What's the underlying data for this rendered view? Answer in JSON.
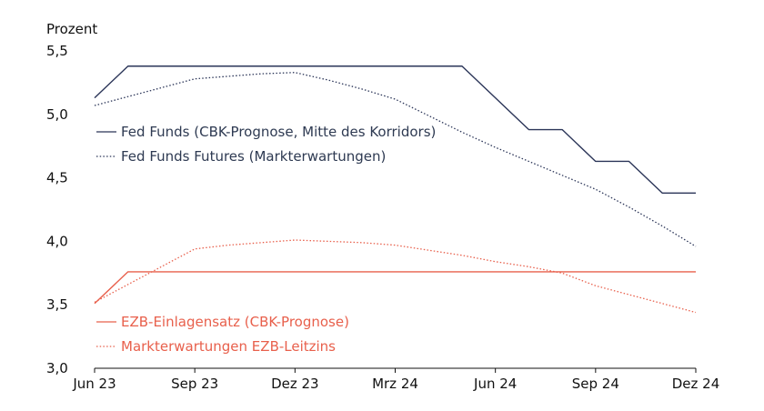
{
  "chart_data": {
    "type": "line",
    "ylabel": "Prozent",
    "ylim": [
      3.0,
      5.5
    ],
    "y_ticks": [
      "3,0",
      "3,5",
      "4,0",
      "4,5",
      "5,0",
      "5,5"
    ],
    "x_axis": {
      "start": "2023-06",
      "end": "2024-12",
      "tick_labels": [
        "Jun 23",
        "Sep 23",
        "Dez 23",
        "Mrz 24",
        "Jun 24",
        "Sep 24",
        "Dez 24"
      ],
      "tick_positions": [
        "2023-06",
        "2023-09",
        "2023-12",
        "2024-03",
        "2024-06",
        "2024-09",
        "2024-12"
      ]
    },
    "grid": false,
    "legend_placement": "inside-left",
    "series": [
      {
        "name": "Fed Funds (CBK-Prognose, Mitte des Korridors)",
        "color": "#2b3558",
        "style": "solid",
        "points": [
          {
            "x": "2023-06",
            "y": 5.13
          },
          {
            "x": "2023-07",
            "y": 5.38
          },
          {
            "x": "2023-08",
            "y": 5.38
          },
          {
            "x": "2023-09",
            "y": 5.38
          },
          {
            "x": "2023-10",
            "y": 5.38
          },
          {
            "x": "2023-11",
            "y": 5.38
          },
          {
            "x": "2023-12",
            "y": 5.38
          },
          {
            "x": "2024-01",
            "y": 5.38
          },
          {
            "x": "2024-02",
            "y": 5.38
          },
          {
            "x": "2024-03",
            "y": 5.38
          },
          {
            "x": "2024-04",
            "y": 5.38
          },
          {
            "x": "2024-05",
            "y": 5.38
          },
          {
            "x": "2024-06",
            "y": 5.13
          },
          {
            "x": "2024-07",
            "y": 4.88
          },
          {
            "x": "2024-08",
            "y": 4.88
          },
          {
            "x": "2024-09",
            "y": 4.63
          },
          {
            "x": "2024-10",
            "y": 4.63
          },
          {
            "x": "2024-11",
            "y": 4.38
          },
          {
            "x": "2024-12",
            "y": 4.38
          }
        ]
      },
      {
        "name": "Fed Funds Futures (Markterwartungen)",
        "color": "#2b3558",
        "style": "dotted",
        "points": [
          {
            "x": "2023-06",
            "y": 5.07
          },
          {
            "x": "2023-07",
            "y": 5.14
          },
          {
            "x": "2023-08",
            "y": 5.21
          },
          {
            "x": "2023-09",
            "y": 5.28
          },
          {
            "x": "2023-10",
            "y": 5.3
          },
          {
            "x": "2023-11",
            "y": 5.32
          },
          {
            "x": "2023-12",
            "y": 5.33
          },
          {
            "x": "2024-01",
            "y": 5.27
          },
          {
            "x": "2024-02",
            "y": 5.2
          },
          {
            "x": "2024-03",
            "y": 5.12
          },
          {
            "x": "2024-04",
            "y": 4.99
          },
          {
            "x": "2024-05",
            "y": 4.86
          },
          {
            "x": "2024-06",
            "y": 4.74
          },
          {
            "x": "2024-07",
            "y": 4.63
          },
          {
            "x": "2024-08",
            "y": 4.52
          },
          {
            "x": "2024-09",
            "y": 4.41
          },
          {
            "x": "2024-10",
            "y": 4.27
          },
          {
            "x": "2024-11",
            "y": 4.12
          },
          {
            "x": "2024-12",
            "y": 3.96
          }
        ]
      },
      {
        "name": "EZB-Einlagensatz (CBK-Prognose)",
        "color": "#e8604c",
        "style": "solid",
        "points": [
          {
            "x": "2023-06",
            "y": 3.51
          },
          {
            "x": "2023-07",
            "y": 3.76
          },
          {
            "x": "2023-08",
            "y": 3.76
          },
          {
            "x": "2023-09",
            "y": 3.76
          },
          {
            "x": "2023-10",
            "y": 3.76
          },
          {
            "x": "2023-11",
            "y": 3.76
          },
          {
            "x": "2023-12",
            "y": 3.76
          },
          {
            "x": "2024-01",
            "y": 3.76
          },
          {
            "x": "2024-02",
            "y": 3.76
          },
          {
            "x": "2024-03",
            "y": 3.76
          },
          {
            "x": "2024-04",
            "y": 3.76
          },
          {
            "x": "2024-05",
            "y": 3.76
          },
          {
            "x": "2024-06",
            "y": 3.76
          },
          {
            "x": "2024-07",
            "y": 3.76
          },
          {
            "x": "2024-08",
            "y": 3.76
          },
          {
            "x": "2024-09",
            "y": 3.76
          },
          {
            "x": "2024-10",
            "y": 3.76
          },
          {
            "x": "2024-11",
            "y": 3.76
          },
          {
            "x": "2024-12",
            "y": 3.76
          }
        ]
      },
      {
        "name": "Markterwartungen EZB-Leitzins",
        "color": "#e8604c",
        "style": "dotted",
        "points": [
          {
            "x": "2023-06",
            "y": 3.52
          },
          {
            "x": "2023-07",
            "y": 3.66
          },
          {
            "x": "2023-08",
            "y": 3.8
          },
          {
            "x": "2023-09",
            "y": 3.94
          },
          {
            "x": "2023-10",
            "y": 3.97
          },
          {
            "x": "2023-11",
            "y": 3.99
          },
          {
            "x": "2023-12",
            "y": 4.01
          },
          {
            "x": "2024-01",
            "y": 4.0
          },
          {
            "x": "2024-02",
            "y": 3.99
          },
          {
            "x": "2024-03",
            "y": 3.97
          },
          {
            "x": "2024-04",
            "y": 3.93
          },
          {
            "x": "2024-05",
            "y": 3.89
          },
          {
            "x": "2024-06",
            "y": 3.84
          },
          {
            "x": "2024-07",
            "y": 3.8
          },
          {
            "x": "2024-08",
            "y": 3.75
          },
          {
            "x": "2024-09",
            "y": 3.65
          },
          {
            "x": "2024-10",
            "y": 3.58
          },
          {
            "x": "2024-11",
            "y": 3.51
          },
          {
            "x": "2024-12",
            "y": 3.44
          }
        ]
      }
    ]
  }
}
